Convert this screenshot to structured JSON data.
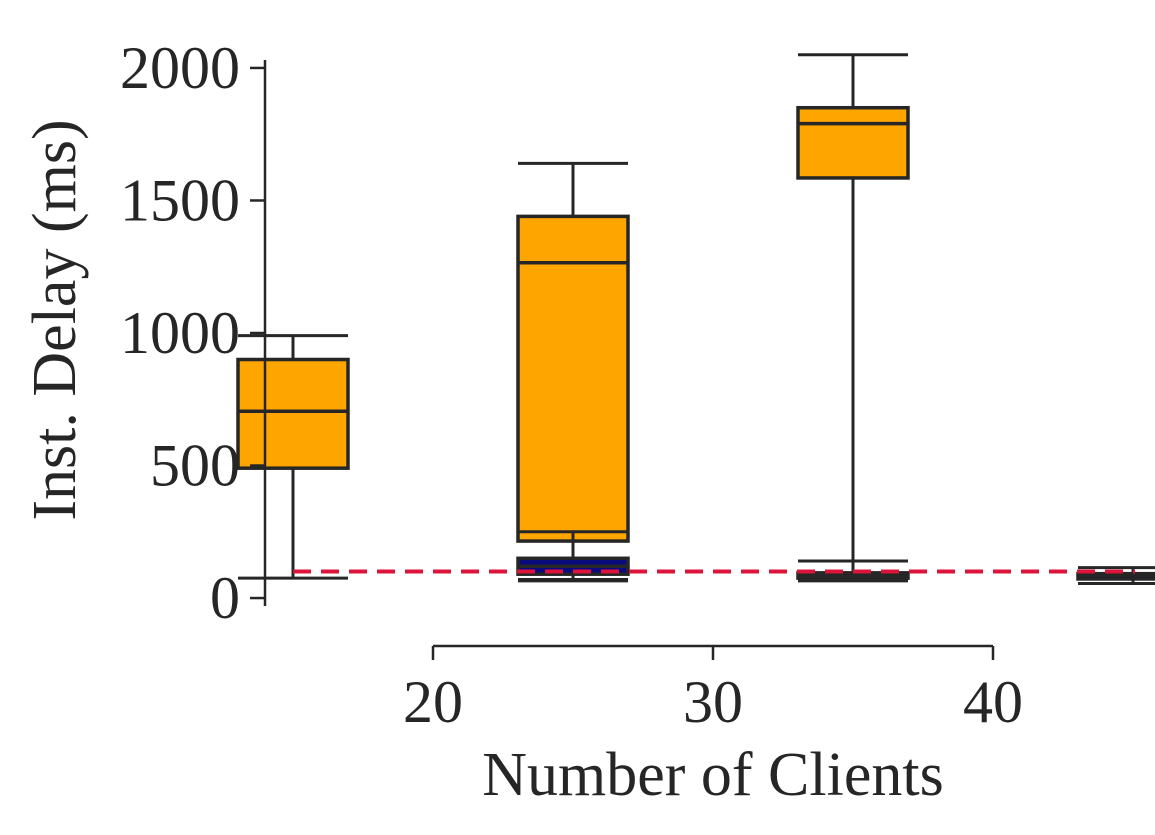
{
  "chart_data": {
    "type": "box",
    "xlabel": "Number of Clients",
    "ylabel": "Inst. Delay (ms)",
    "categories": [
      "20",
      "30",
      "40"
    ],
    "yticks": [
      "0",
      "500",
      "1000",
      "1500",
      "2000"
    ],
    "ylim": [
      -30,
      2030
    ],
    "reference_line": {
      "value": 100,
      "style": "dashed",
      "color": "#dc143c"
    },
    "series": [
      {
        "color": "#ffa500",
        "boxes": [
          {
            "whisker_low": 75,
            "q1": 490,
            "median": 705,
            "q3": 900,
            "whisker_high": 990
          },
          {
            "whisker_low": 70,
            "q1": 215,
            "median": 1265,
            "q3": 1440,
            "whisker_high": 1640
          },
          {
            "whisker_low": 95,
            "q1": 1585,
            "median": 1790,
            "q3": 1850,
            "whisker_high": 2050
          }
        ]
      },
      {
        "color": "#0a0a80",
        "boxes": [
          {
            "whisker_low": 65,
            "q1": 90,
            "median": 120,
            "q3": 150,
            "whisker_high": 250
          },
          {
            "whisker_low": 65,
            "q1": 75,
            "median": 85,
            "q3": 95,
            "whisker_high": 140
          },
          {
            "whisker_low": 55,
            "q1": 72,
            "median": 85,
            "q3": 92,
            "whisker_high": 115
          }
        ]
      }
    ],
    "grid": false,
    "legend": "none"
  }
}
